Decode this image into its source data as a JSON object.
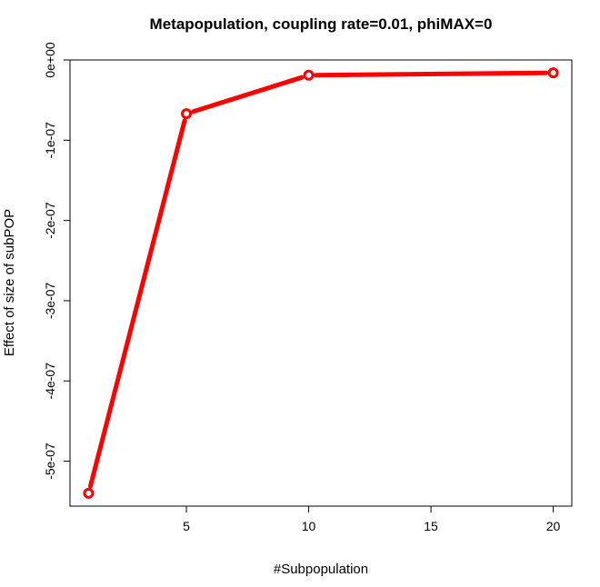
{
  "chart_data": {
    "type": "line",
    "title": "Metapopulation, coupling rate=0.01, phiMAX=0",
    "xlabel": "#Subpopulation",
    "ylabel": "Effect of size of subPOP",
    "x": [
      1,
      5,
      10,
      20
    ],
    "series": [
      {
        "values": [
          -5.4e-07,
          -6.7e-08,
          -1.9e-08,
          -1.6e-08
        ],
        "color": "#ff0000"
      }
    ],
    "xlim": [
      0.24,
      20.76
    ],
    "ylim": [
      -5.56e-07,
      0.0
    ],
    "x_ticks": [
      5,
      10,
      15,
      20
    ],
    "x_tick_labels": [
      "5",
      "10",
      "15",
      "20"
    ],
    "y_ticks": [
      0,
      -1e-07,
      -2e-07,
      -3e-07,
      -4e-07,
      -5e-07
    ],
    "y_tick_labels": [
      "0e+00",
      "-1e-07",
      "-2e-07",
      "-3e-07",
      "-4e-07",
      "-5e-07"
    ],
    "marker": "open-circle",
    "grid": false,
    "legend": "none"
  }
}
